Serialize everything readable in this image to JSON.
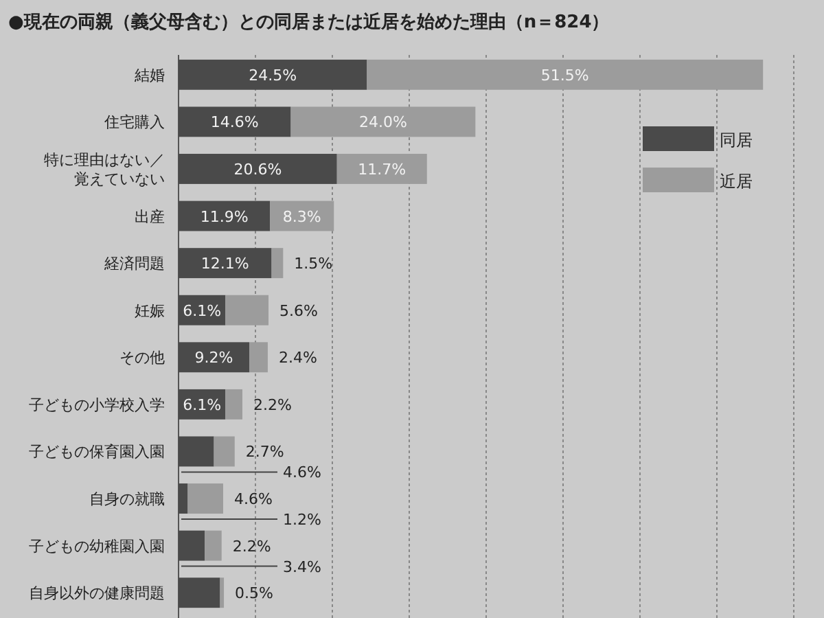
{
  "chart_data": {
    "type": "bar",
    "orientation": "horizontal",
    "stacked": true,
    "title": "●現在の両親（義父母含む）との同居または近居を始めた理由（n＝824）",
    "categories": [
      "結婚",
      "住宅購入",
      "特に理由はない／覚えていない",
      "出産",
      "経済問題",
      "妊娠",
      "その他",
      "子どもの小学校入学",
      "子どもの保育園入園",
      "自身の就職",
      "子どもの幼稚園入園",
      "自身以外の健康問題"
    ],
    "series": [
      {
        "name": "同居",
        "color": "#4a4a4a",
        "values": [
          24.5,
          14.6,
          20.6,
          11.9,
          12.1,
          6.1,
          9.2,
          6.1,
          4.6,
          1.2,
          3.4,
          5.4
        ],
        "value_labels": [
          "24.5%",
          "14.6%",
          "20.6%",
          "11.9%",
          "12.1%",
          "6.1%",
          "9.2%",
          "6.1%",
          "4.6%",
          "1.2%",
          "3.4%",
          null
        ]
      },
      {
        "name": "近居",
        "color": "#9c9c9c",
        "values": [
          51.5,
          24.0,
          11.7,
          8.3,
          1.5,
          5.6,
          2.4,
          2.2,
          2.7,
          4.6,
          2.2,
          0.5
        ],
        "value_labels": [
          "51.5%",
          "24.0%",
          "11.7%",
          "8.3%",
          "1.5%",
          "5.6%",
          "2.4%",
          "2.2%",
          "2.7%",
          "4.6%",
          "2.2%",
          "0.5%"
        ]
      }
    ],
    "xlim": [
      0,
      80
    ],
    "xticks": [
      {
        "value": 0,
        "label": null
      },
      {
        "value": 10,
        "label": null
      },
      {
        "value": 20,
        "label": null
      },
      {
        "value": 30,
        "label": null
      },
      {
        "value": 40,
        "label": null
      },
      {
        "value": 50,
        "label": null
      },
      {
        "value": 60,
        "label": null
      },
      {
        "value": 70,
        "label": null
      },
      {
        "value": 80,
        "label": null
      }
    ],
    "tick_labels": "y",
    "grid": "x",
    "legend": "top right"
  }
}
